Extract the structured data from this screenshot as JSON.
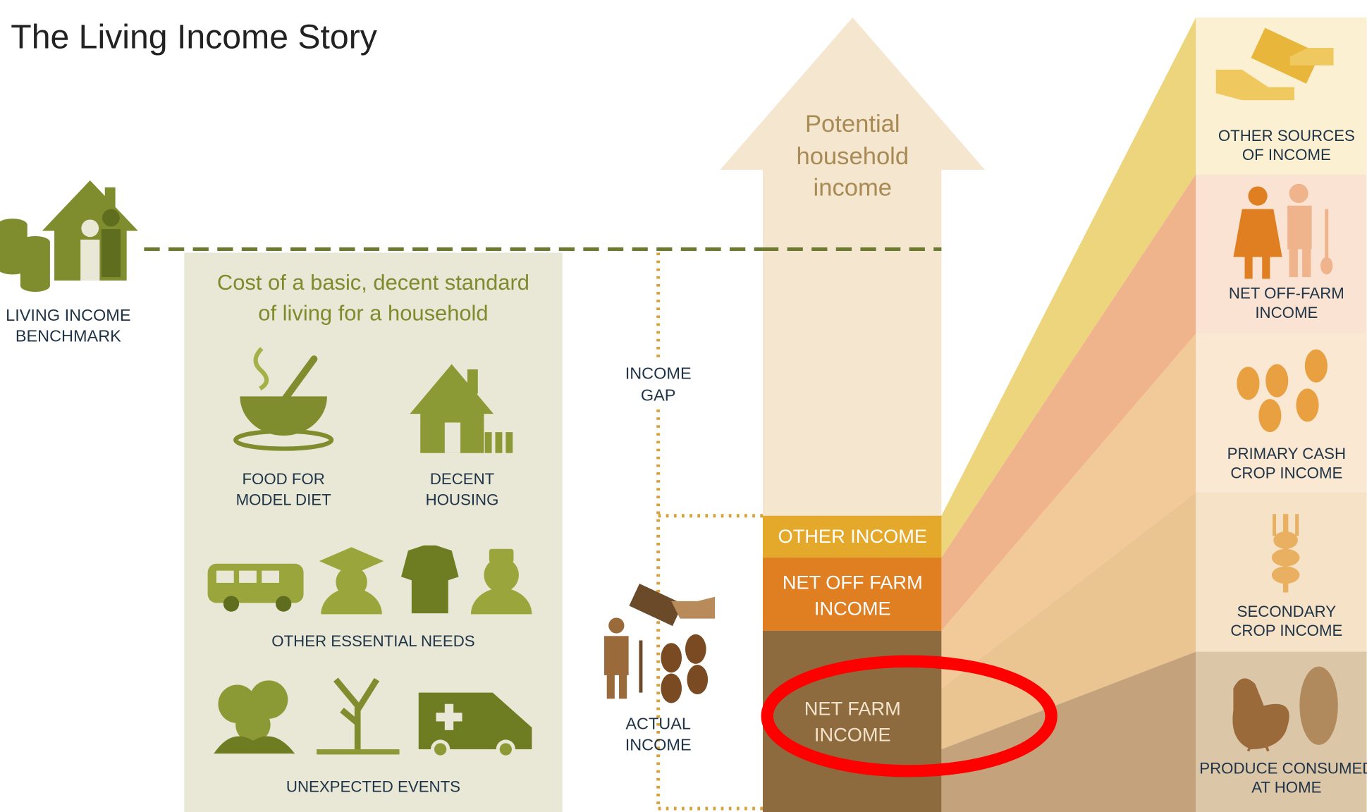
{
  "title": "The Living Income Story",
  "benchmark": {
    "label": [
      "LIVING INCOME",
      "BENCHMARK"
    ]
  },
  "cost_box": {
    "title": [
      "Cost of a basic, decent standard",
      "of living for a household"
    ],
    "items": [
      {
        "label": [
          "FOOD FOR",
          "MODEL DIET"
        ]
      },
      {
        "label": [
          "DECENT",
          "HOUSING"
        ]
      },
      {
        "label": [
          "OTHER ESSENTIAL NEEDS"
        ]
      },
      {
        "label": [
          "UNEXPECTED EVENTS"
        ]
      }
    ]
  },
  "income_gap": {
    "label": [
      "INCOME",
      "GAP"
    ]
  },
  "actual_income": {
    "label": [
      "ACTUAL",
      "INCOME"
    ]
  },
  "potential": {
    "label": [
      "Potential",
      "household",
      "income"
    ]
  },
  "bars": [
    {
      "label": [
        "OTHER INCOME"
      ]
    },
    {
      "label": [
        "NET OFF FARM",
        "INCOME"
      ]
    },
    {
      "label": [
        "NET FARM",
        "INCOME"
      ]
    }
  ],
  "sources": [
    {
      "label": [
        "OTHER SOURCES",
        "OF INCOME"
      ]
    },
    {
      "label": [
        "NET OFF-FARM",
        "INCOME"
      ]
    },
    {
      "label": [
        "PRIMARY CASH",
        "CROP INCOME"
      ]
    },
    {
      "label": [
        "SECONDARY",
        "CROP INCOME"
      ]
    },
    {
      "label": [
        "PRODUCE CONSUMED",
        "AT HOME"
      ]
    }
  ]
}
